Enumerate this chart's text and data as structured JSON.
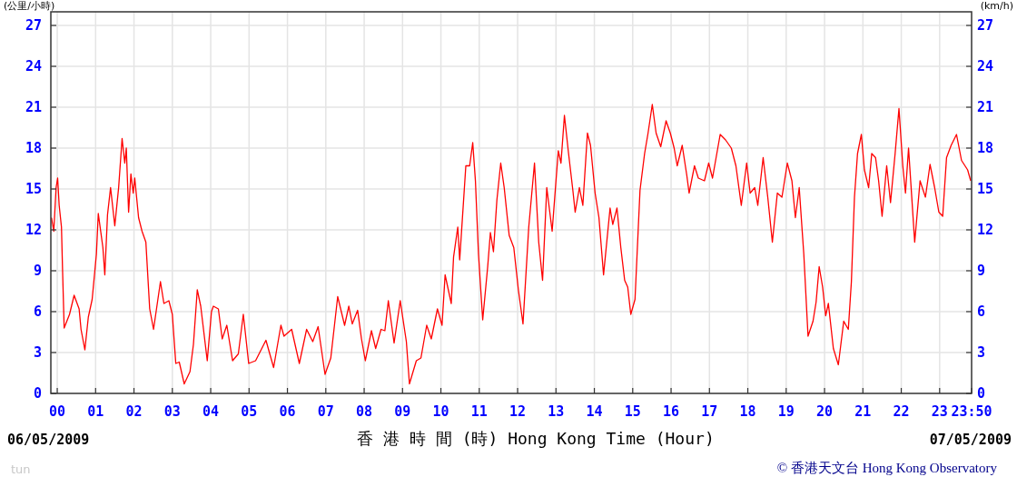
{
  "chart_data": {
    "type": "line",
    "xlabel": "香 港 時 間 (時)  Hong Kong Time (Hour)",
    "ylabel": "(公里/小時)",
    "y2label": "(km/h)",
    "annotations": [
      "06/05/2009",
      "07/05/2009",
      "tun",
      "© 香港天文台 Hong Kong Observatory"
    ],
    "xlim": [
      -0.1667,
      23.8333
    ],
    "xticks": [
      {
        "value": 0,
        "label": "00"
      },
      {
        "value": 1,
        "label": "01"
      },
      {
        "value": 2,
        "label": "02"
      },
      {
        "value": 3,
        "label": "03"
      },
      {
        "value": 4,
        "label": "04"
      },
      {
        "value": 5,
        "label": "05"
      },
      {
        "value": 6,
        "label": "06"
      },
      {
        "value": 7,
        "label": "07"
      },
      {
        "value": 8,
        "label": "08"
      },
      {
        "value": 9,
        "label": "09"
      },
      {
        "value": 10,
        "label": "10"
      },
      {
        "value": 11,
        "label": "11"
      },
      {
        "value": 12,
        "label": "12"
      },
      {
        "value": 13,
        "label": "13"
      },
      {
        "value": 14,
        "label": "14"
      },
      {
        "value": 15,
        "label": "15"
      },
      {
        "value": 16,
        "label": "16"
      },
      {
        "value": 17,
        "label": "17"
      },
      {
        "value": 18,
        "label": "18"
      },
      {
        "value": 19,
        "label": "19"
      },
      {
        "value": 20,
        "label": "20"
      },
      {
        "value": 21,
        "label": "21"
      },
      {
        "value": 22,
        "label": "22"
      },
      {
        "value": 23,
        "label": "23"
      },
      {
        "value": 23.8333,
        "label": "23:50"
      }
    ],
    "ylim": [
      0,
      28
    ],
    "yticks": [
      0,
      3,
      6,
      9,
      12,
      15,
      18,
      21,
      24,
      27
    ],
    "y2lim": [
      0,
      28
    ],
    "y2ticks": [
      0,
      3,
      6,
      9,
      12,
      15,
      18,
      21,
      24,
      27
    ],
    "grid": true,
    "marker": "none",
    "line_style": "solid",
    "series": [
      {
        "color": "#ff0000",
        "x": [
          -0.15,
          -0.09,
          -0.03,
          0.01,
          0.05,
          0.11,
          0.14,
          0.18,
          0.32,
          0.44,
          0.57,
          0.62,
          0.72,
          0.81,
          0.91,
          1.02,
          1.07,
          1.19,
          1.24,
          1.31,
          1.39,
          1.5,
          1.6,
          1.69,
          1.76,
          1.8,
          1.86,
          1.92,
          1.98,
          2.02,
          2.12,
          2.21,
          2.31,
          2.41,
          2.51,
          2.69,
          2.78,
          2.91,
          3.0,
          3.09,
          3.18,
          3.31,
          3.46,
          3.55,
          3.65,
          3.74,
          3.91,
          4.02,
          4.07,
          4.2,
          4.3,
          4.42,
          4.57,
          4.72,
          4.85,
          4.99,
          5.17,
          5.44,
          5.64,
          5.83,
          5.91,
          6.11,
          6.31,
          6.5,
          6.66,
          6.8,
          6.98,
          7.13,
          7.31,
          7.49,
          7.6,
          7.69,
          7.83,
          7.93,
          8.03,
          8.19,
          8.3,
          8.44,
          8.54,
          8.63,
          8.78,
          8.94,
          9.1,
          9.18,
          9.36,
          9.48,
          9.63,
          9.75,
          9.91,
          10.03,
          10.11,
          10.27,
          10.33,
          10.44,
          10.49,
          10.65,
          10.75,
          10.83,
          10.9,
          10.98,
          11.09,
          11.22,
          11.29,
          11.37,
          11.46,
          11.56,
          11.65,
          11.78,
          11.9,
          12.02,
          12.14,
          12.29,
          12.44,
          12.55,
          12.65,
          12.76,
          12.9,
          13.06,
          13.13,
          13.22,
          13.32,
          13.44,
          13.5,
          13.61,
          13.7,
          13.82,
          13.9,
          14.02,
          14.12,
          14.24,
          14.41,
          14.48,
          14.59,
          14.69,
          14.79,
          14.87,
          14.95,
          15.06,
          15.19,
          15.31,
          15.4,
          15.51,
          15.61,
          15.73,
          15.87,
          15.98,
          16.08,
          16.16,
          16.29,
          16.41,
          16.47,
          16.61,
          16.71,
          16.87,
          16.98,
          17.08,
          17.28,
          17.42,
          17.57,
          17.69,
          17.83,
          17.97,
          18.06,
          18.18,
          18.26,
          18.4,
          18.52,
          18.64,
          18.77,
          18.89,
          19.03,
          19.15,
          19.24,
          19.34,
          19.46,
          19.57,
          19.7,
          19.78,
          19.86,
          19.95,
          20.03,
          20.1,
          20.23,
          20.36,
          20.5,
          20.62,
          20.7,
          20.78,
          20.86,
          20.96,
          21.04,
          21.15,
          21.23,
          21.33,
          21.41,
          21.5,
          21.62,
          21.72,
          21.84,
          21.94,
          22.04,
          22.11,
          22.19,
          22.35,
          22.49,
          22.63,
          22.75,
          22.87,
          22.98,
          23.08,
          23.18,
          23.3,
          23.44,
          23.57,
          23.73,
          23.81
        ],
        "values": [
          12.9,
          11.9,
          15.1,
          15.8,
          13.8,
          12.2,
          8.9,
          4.8,
          5.8,
          7.2,
          6.2,
          4.7,
          3.2,
          5.6,
          6.9,
          10.2,
          13.2,
          10.7,
          8.7,
          13.1,
          15.1,
          12.3,
          15.1,
          18.7,
          16.9,
          18.0,
          13.3,
          16.1,
          14.7,
          15.8,
          12.9,
          11.9,
          11.1,
          6.2,
          4.7,
          8.2,
          6.6,
          6.8,
          5.8,
          2.2,
          2.3,
          0.7,
          1.6,
          3.6,
          7.6,
          6.4,
          2.4,
          6.0,
          6.4,
          6.2,
          4.0,
          5.0,
          2.4,
          2.9,
          5.8,
          2.2,
          2.4,
          3.9,
          1.9,
          5.0,
          4.2,
          4.7,
          2.2,
          4.7,
          3.8,
          4.9,
          1.4,
          2.6,
          7.1,
          5.0,
          6.4,
          5.1,
          6.1,
          4.0,
          2.4,
          4.6,
          3.3,
          4.7,
          4.6,
          6.8,
          3.7,
          6.8,
          3.8,
          0.7,
          2.4,
          2.6,
          5.0,
          4.0,
          6.2,
          5.0,
          8.7,
          6.6,
          10.0,
          12.2,
          9.8,
          16.7,
          16.7,
          18.4,
          15.6,
          10.2,
          5.4,
          9.3,
          11.8,
          10.4,
          14.2,
          16.9,
          15.1,
          11.6,
          10.7,
          7.6,
          5.1,
          12.2,
          16.9,
          11.1,
          8.3,
          15.1,
          11.9,
          17.8,
          16.9,
          20.4,
          17.8,
          14.9,
          13.3,
          15.1,
          13.8,
          19.1,
          18.2,
          14.7,
          12.9,
          8.7,
          13.6,
          12.4,
          13.6,
          10.7,
          8.3,
          7.8,
          5.8,
          6.9,
          14.9,
          17.6,
          19.1,
          21.2,
          19.1,
          18.1,
          20.0,
          19.1,
          18.0,
          16.7,
          18.2,
          16.0,
          14.7,
          16.7,
          15.8,
          15.6,
          16.9,
          15.8,
          19.0,
          18.6,
          18.0,
          16.7,
          13.8,
          16.9,
          14.7,
          15.1,
          13.8,
          17.3,
          14.4,
          11.1,
          14.7,
          14.4,
          16.9,
          15.6,
          12.9,
          15.1,
          10.2,
          4.2,
          5.3,
          6.7,
          9.3,
          7.8,
          5.7,
          6.6,
          3.3,
          2.1,
          5.3,
          4.7,
          8.2,
          14.4,
          17.6,
          19.0,
          16.4,
          15.1,
          17.6,
          17.3,
          15.6,
          13.0,
          16.7,
          14.0,
          17.6,
          20.9,
          16.7,
          14.7,
          18.0,
          11.1,
          15.6,
          14.4,
          16.8,
          15.1,
          13.3,
          13.0,
          17.3,
          18.2,
          19.0,
          17.1,
          16.4,
          15.6
        ]
      }
    ]
  }
}
